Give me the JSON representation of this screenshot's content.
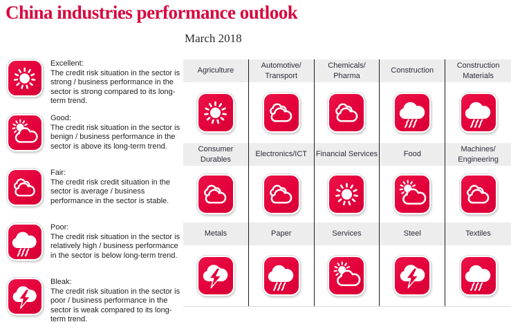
{
  "title": "China industries performance outlook",
  "subtitle": "March 2018",
  "colors": {
    "accent_red": "#e4003b",
    "title_red": "#d9063e",
    "header_bg": "#ededed",
    "header_text": "#2b2b3a",
    "divider": "#1a1a1a"
  },
  "legend": {
    "items": [
      {
        "rating": "excellent",
        "icon": "sun-icon",
        "label": "Excellent:",
        "description": "The credit risk situation in the sector is strong / business performance in the sector is strong compared to its long-term trend."
      },
      {
        "rating": "good",
        "icon": "sun-behind-cloud-icon",
        "label": "Good:",
        "description": "The credit risk situation in the sector is benign / business performance in the sector is above its long-term trend."
      },
      {
        "rating": "fair",
        "icon": "clouds-icon",
        "label": "Fair:",
        "description": "The credit risk credit situation in the sector is average / business performance in the sector is stable."
      },
      {
        "rating": "poor",
        "icon": "rain-cloud-icon",
        "label": "Poor:",
        "description": "The credit risk situation in the sector is relatively high / business performance in the sector is below long-term trend."
      },
      {
        "rating": "bleak",
        "icon": "storm-cloud-icon",
        "label": "Bleak:",
        "description": "The credit risk situation in the sector is poor / business performance in the sector is weak compared to its long-term trend."
      }
    ]
  },
  "grid": {
    "rows": [
      {
        "cells": [
          {
            "label": "Agriculture",
            "rating": "excellent"
          },
          {
            "label": "Automotive/ Transport",
            "rating": "fair"
          },
          {
            "label": "Chemicals/ Pharma",
            "rating": "fair"
          },
          {
            "label": "Construction",
            "rating": "poor"
          },
          {
            "label": "Construction Materials",
            "rating": "poor"
          }
        ]
      },
      {
        "cells": [
          {
            "label": "Consumer Durables",
            "rating": "fair"
          },
          {
            "label": "Electronics/ICT",
            "rating": "fair"
          },
          {
            "label": "Financial Services",
            "rating": "excellent"
          },
          {
            "label": "Food",
            "rating": "good"
          },
          {
            "label": "Machines/ Engineering",
            "rating": "fair"
          }
        ]
      },
      {
        "cells": [
          {
            "label": "Metals",
            "rating": "bleak"
          },
          {
            "label": "Paper",
            "rating": "poor"
          },
          {
            "label": "Services",
            "rating": "good"
          },
          {
            "label": "Steel",
            "rating": "bleak"
          },
          {
            "label": "Textiles",
            "rating": "poor"
          }
        ]
      }
    ]
  },
  "chart_data": {
    "type": "table",
    "title": "China industries performance outlook",
    "subtitle": "March 2018",
    "rating_scale": [
      "excellent",
      "good",
      "fair",
      "poor",
      "bleak"
    ],
    "industries": [
      {
        "name": "Agriculture",
        "rating": "excellent"
      },
      {
        "name": "Automotive/Transport",
        "rating": "fair"
      },
      {
        "name": "Chemicals/Pharma",
        "rating": "fair"
      },
      {
        "name": "Construction",
        "rating": "poor"
      },
      {
        "name": "Construction Materials",
        "rating": "poor"
      },
      {
        "name": "Consumer Durables",
        "rating": "fair"
      },
      {
        "name": "Electronics/ICT",
        "rating": "fair"
      },
      {
        "name": "Financial Services",
        "rating": "excellent"
      },
      {
        "name": "Food",
        "rating": "good"
      },
      {
        "name": "Machines/Engineering",
        "rating": "fair"
      },
      {
        "name": "Metals",
        "rating": "bleak"
      },
      {
        "name": "Paper",
        "rating": "poor"
      },
      {
        "name": "Services",
        "rating": "good"
      },
      {
        "name": "Steel",
        "rating": "bleak"
      },
      {
        "name": "Textiles",
        "rating": "poor"
      }
    ]
  }
}
